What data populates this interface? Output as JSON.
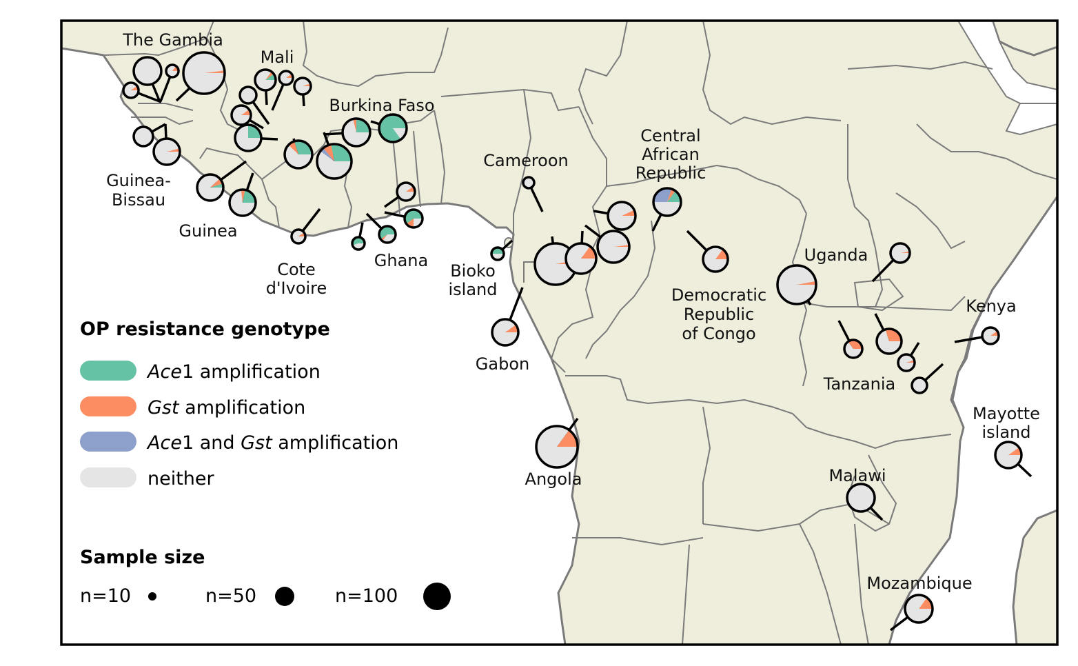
{
  "map": {
    "country_labels": [
      "The Gambia",
      "Mali",
      "Burkina Faso",
      "Guinea-",
      "Bissau",
      "Guinea",
      "Cote",
      "d'Ivoire",
      "Ghana",
      "Cameroon",
      "Bioko",
      "island",
      "Central",
      "African",
      "Republic",
      "Democratic",
      "Republic",
      "of Congo",
      "Uganda",
      "Kenya",
      "Tanzania",
      "Gabon",
      "Angola",
      "Mayotte",
      "island",
      "Malawi",
      "Mozambique"
    ]
  },
  "legend": {
    "genotype_title": "OP resistance genotype",
    "genotypes": [
      {
        "italic_a": "Ace",
        "text_a": "1 amplification",
        "italic_b": "",
        "text_b": "",
        "color": "#66c2a5"
      },
      {
        "italic_a": "Gst",
        "text_a": " amplification",
        "italic_b": "",
        "text_b": "",
        "color": "#fc8d62"
      },
      {
        "italic_a": "Ace",
        "text_a": "1 and ",
        "italic_b": "Gst",
        "text_b": " amplification",
        "color": "#8da0cb"
      },
      {
        "italic_a": "",
        "text_a": "neither",
        "italic_b": "",
        "text_b": "",
        "color": "#e5e5e5"
      }
    ],
    "size_title": "Sample size",
    "sizes": [
      "n=10",
      "n=50",
      "n=100"
    ]
  },
  "colors": {
    "land": "#efeedd",
    "border": "#7a7a7a",
    "coast": "#7a7a7a",
    "ocean": "#ffffff",
    "ace1": "#66c2a5",
    "gst": "#fc8d62",
    "both": "#8da0cb",
    "neither": "#e5e5e5"
  },
  "pie_values": [
    {
      "ace1": 0,
      "gst": 0.02,
      "both": 0,
      "n": 95
    },
    {
      "ace1": 0,
      "gst": 0,
      "both": 0,
      "n": 45
    },
    {
      "ace1": 0,
      "gst": 0.15,
      "both": 0,
      "n": 12
    },
    {
      "ace1": 0,
      "gst": 0.1,
      "both": 0,
      "n": 18
    },
    {
      "ace1": 0.1,
      "gst": 0.05,
      "both": 0,
      "n": 26
    },
    {
      "ace1": 0,
      "gst": 0.1,
      "both": 0,
      "n": 14
    },
    {
      "ace1": 0,
      "gst": 0.05,
      "both": 0,
      "n": 20
    },
    {
      "ace1": 0,
      "gst": 0,
      "both": 0,
      "n": 20
    },
    {
      "ace1": 0,
      "gst": 0.1,
      "both": 0,
      "n": 25
    },
    {
      "ace1": 0.25,
      "gst": 0,
      "both": 0,
      "n": 40
    },
    {
      "ace1": 0,
      "gst": 0,
      "both": 0,
      "n": 26
    },
    {
      "ace1": 0,
      "gst": 0.04,
      "both": 0,
      "n": 42
    },
    {
      "ace1": 0.05,
      "gst": 0.07,
      "both": 0,
      "n": 36
    },
    {
      "ace1": 0.22,
      "gst": 0.05,
      "both": 0,
      "n": 42
    },
    {
      "ace1": 0.3,
      "gst": 0.08,
      "both": 0,
      "n": 44
    },
    {
      "ace1": 0.28,
      "gst": 0.08,
      "both": 0.04,
      "n": 60
    },
    {
      "ace1": 0.25,
      "gst": 0.04,
      "both": 0,
      "n": 45
    },
    {
      "ace1": 0.85,
      "gst": 0,
      "both": 0,
      "n": 45
    },
    {
      "ace1": 0,
      "gst": 0.1,
      "both": 0,
      "n": 14
    },
    {
      "ace1": 0,
      "gst": 0.1,
      "both": 0,
      "n": 22
    },
    {
      "ace1": 0.6,
      "gst": 0.15,
      "both": 0,
      "n": 22
    },
    {
      "ace1": 0.6,
      "gst": 0.05,
      "both": 0,
      "n": 22
    },
    {
      "ace1": 0.55,
      "gst": 0,
      "both": 0,
      "n": 10
    },
    {
      "ace1": 0,
      "gst": 0,
      "both": 0,
      "n": 6
    },
    {
      "ace1": 0.5,
      "gst": 0,
      "both": 0,
      "n": 7
    },
    {
      "ace1": 0,
      "gst": 0.03,
      "both": 0,
      "n": 55
    },
    {
      "ace1": 0,
      "gst": 0.15,
      "both": 0,
      "n": 48
    },
    {
      "ace1": 0,
      "gst": 0.02,
      "both": 0,
      "n": 50
    },
    {
      "ace1": 0,
      "gst": 0.07,
      "both": 0,
      "n": 40
    },
    {
      "ace1": 0.15,
      "gst": 0.05,
      "both": 0.3,
      "n": 40
    },
    {
      "ace1": 0,
      "gst": 0.15,
      "both": 0,
      "n": 34
    },
    {
      "ace1": 0,
      "gst": 0.1,
      "both": 0,
      "n": 45
    },
    {
      "ace1": 0,
      "gst": 0.15,
      "both": 0,
      "n": 85
    },
    {
      "ace1": 0,
      "gst": 0.03,
      "both": 0,
      "n": 80
    },
    {
      "ace1": 0,
      "gst": 0.03,
      "both": 0,
      "n": 25
    },
    {
      "ace1": 0,
      "gst": 0.1,
      "both": 0,
      "n": 20
    },
    {
      "ace1": 0,
      "gst": 0.35,
      "both": 0,
      "n": 24
    },
    {
      "ace1": 0,
      "gst": 0.3,
      "both": 0,
      "n": 40
    },
    {
      "ace1": 0,
      "gst": 0.05,
      "both": 0,
      "n": 20
    },
    {
      "ace1": 0,
      "gst": 0,
      "both": 0,
      "n": 12
    },
    {
      "ace1": 0,
      "gst": 0,
      "both": 0,
      "n": 38
    },
    {
      "ace1": 0,
      "gst": 0.1,
      "both": 0,
      "n": 35
    },
    {
      "ace1": 0,
      "gst": 0.15,
      "both": 0,
      "n": 38
    }
  ]
}
